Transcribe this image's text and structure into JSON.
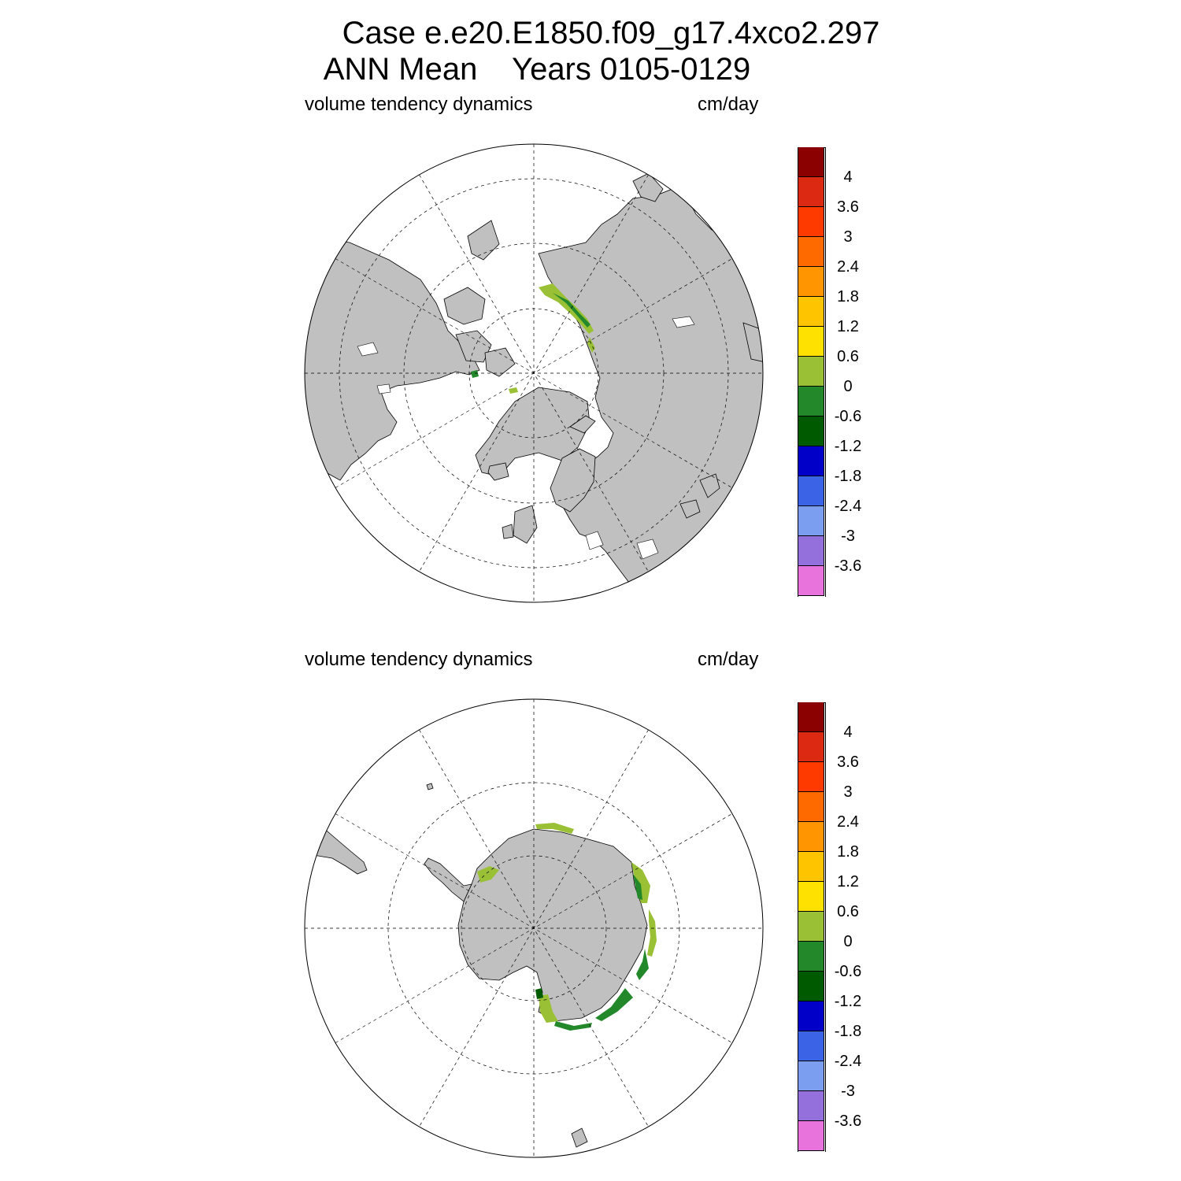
{
  "header": {
    "line1": "Case e.e20.E1850.f09_g17.4xco2.297",
    "line2": "ANN Mean    Years 0105-0129"
  },
  "colorbar": {
    "colors": [
      "#8b0000",
      "#dc2a12",
      "#ff3a00",
      "#ff6a00",
      "#ff9500",
      "#ffc400",
      "#ffe100",
      "#9ac035",
      "#22882a",
      "#005a00",
      "#0000c8",
      "#3b63e6",
      "#7b9ef0",
      "#9370db",
      "#e873dc"
    ],
    "labels": [
      "4",
      "3.6",
      "3",
      "2.4",
      "1.8",
      "1.2",
      "0.6",
      "0",
      "-0.6",
      "-1.2",
      "-1.8",
      "-2.4",
      "-3",
      "-3.6"
    ]
  },
  "panels": [
    {
      "hemisphere": "north",
      "label_left": "volume tendency dynamics",
      "label_right": "cm/day",
      "land_color": "#c0c0c0",
      "ocean_color": "#ffffff"
    },
    {
      "hemisphere": "south",
      "label_left": "volume tendency dynamics",
      "label_right": "cm/day",
      "land_color": "#c0c0c0",
      "ocean_color": "#ffffff"
    }
  ]
}
